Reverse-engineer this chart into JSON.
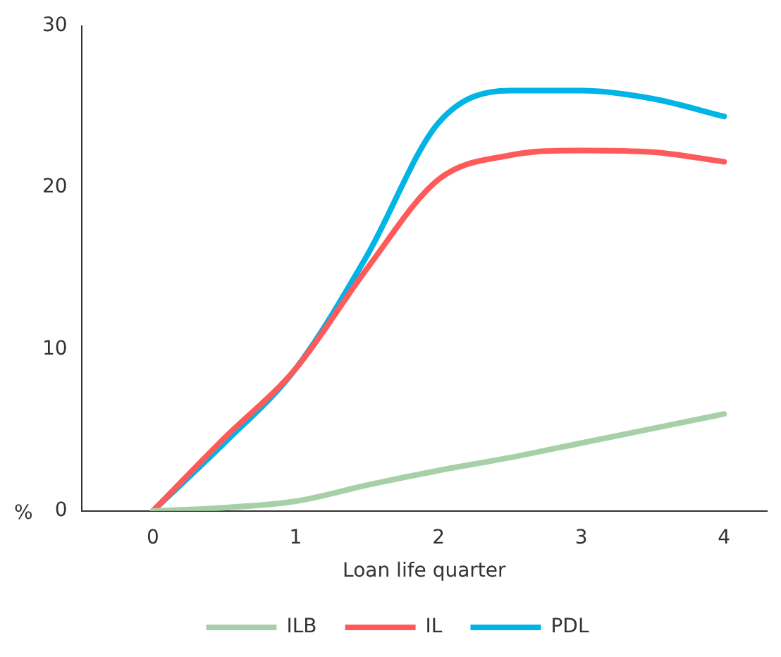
{
  "chart_data": {
    "type": "line",
    "xlabel": "Loan life quarter",
    "ylabel": "%",
    "x": [
      0,
      0.5,
      1,
      1.5,
      2,
      2.5,
      3,
      3.5,
      4
    ],
    "xlim": [
      -0.5,
      4.3
    ],
    "xticks": [
      0,
      1,
      2,
      3,
      4
    ],
    "ylim": [
      0,
      30
    ],
    "yticks": [
      0,
      10,
      20,
      30
    ],
    "grid": false,
    "legend": "bottom",
    "marker": "none",
    "line_style": "solid",
    "series": [
      {
        "name": "ILB",
        "color": "#a8d0a8",
        "values": [
          0,
          0.2,
          0.6,
          1.6,
          2.5,
          3.3,
          4.2,
          5.1,
          6
        ]
      },
      {
        "name": "IL",
        "color": "#ff5a5a",
        "values": [
          0,
          4.5,
          8.8,
          15,
          20.5,
          22,
          22.3,
          22.2,
          21.6
        ]
      },
      {
        "name": "PDL",
        "color": "#00b4e6",
        "values": [
          0,
          4.2,
          8.8,
          15.8,
          24,
          26,
          26,
          25.5,
          24.4
        ]
      }
    ]
  }
}
